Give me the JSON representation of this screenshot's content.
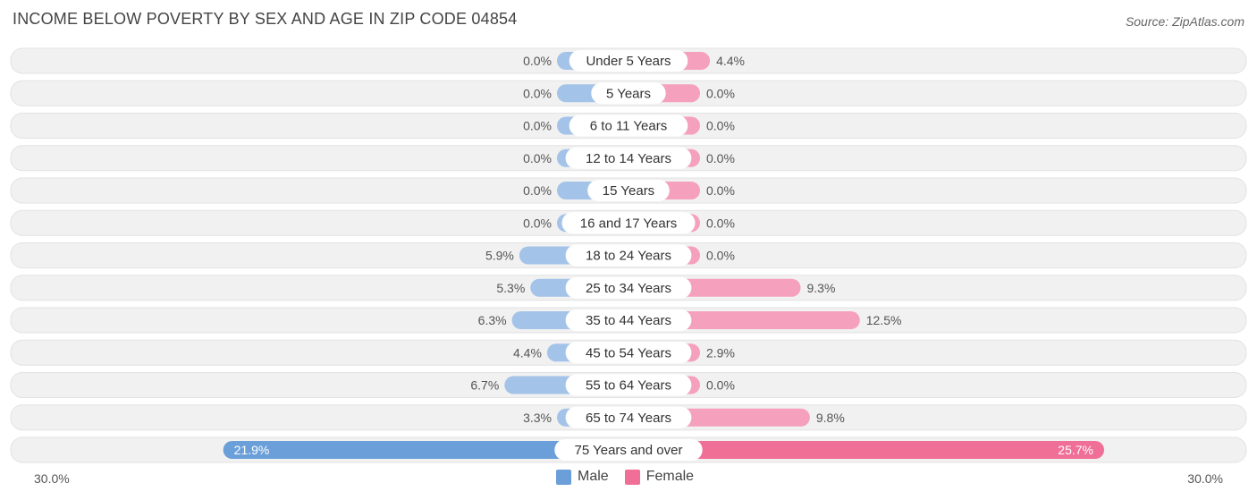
{
  "title": "INCOME BELOW POVERTY BY SEX AND AGE IN ZIP CODE 04854",
  "source": "Source: ZipAtlas.com",
  "axis": {
    "left_label": "30.0%",
    "right_label": "30.0%"
  },
  "legend": {
    "male_label": "Male",
    "female_label": "Female"
  },
  "colors": {
    "male": "#a4c3e8",
    "male_strong": "#6b9fd9",
    "female": "#f5a0bc",
    "female_strong": "#ef6f97",
    "row_bg": "#f1f1f1"
  },
  "chart_data": {
    "type": "bar",
    "orientation": "horizontal-diverging",
    "xlim": [
      -30,
      30
    ],
    "categories": [
      "Under 5 Years",
      "5 Years",
      "6 to 11 Years",
      "12 to 14 Years",
      "15 Years",
      "16 and 17 Years",
      "18 to 24 Years",
      "25 to 34 Years",
      "35 to 44 Years",
      "45 to 54 Years",
      "55 to 64 Years",
      "65 to 74 Years",
      "75 Years and over"
    ],
    "series": [
      {
        "name": "Male",
        "values": [
          0.0,
          0.0,
          0.0,
          0.0,
          0.0,
          0.0,
          5.9,
          5.3,
          6.3,
          4.4,
          6.7,
          3.3,
          21.9
        ],
        "labels": [
          "0.0%",
          "0.0%",
          "0.0%",
          "0.0%",
          "0.0%",
          "0.0%",
          "5.9%",
          "5.3%",
          "6.3%",
          "4.4%",
          "6.7%",
          "3.3%",
          "21.9%"
        ]
      },
      {
        "name": "Female",
        "values": [
          4.4,
          0.0,
          0.0,
          0.0,
          0.0,
          0.0,
          0.0,
          9.3,
          12.5,
          2.9,
          0.0,
          9.8,
          25.7
        ],
        "labels": [
          "4.4%",
          "0.0%",
          "0.0%",
          "0.0%",
          "0.0%",
          "0.0%",
          "0.0%",
          "9.3%",
          "12.5%",
          "2.9%",
          "0.0%",
          "9.8%",
          "25.7%"
        ]
      }
    ]
  }
}
